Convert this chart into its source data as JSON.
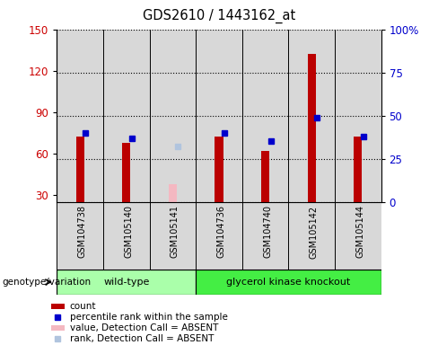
{
  "title": "GDS2610 / 1443162_at",
  "samples": [
    "GSM104738",
    "GSM105140",
    "GSM105141",
    "GSM104736",
    "GSM104740",
    "GSM105142",
    "GSM105144"
  ],
  "count_values": [
    72,
    68,
    null,
    72,
    62,
    132,
    72
  ],
  "count_absent_values": [
    null,
    null,
    38,
    null,
    null,
    null,
    null
  ],
  "percentile_values": [
    40,
    37,
    null,
    40,
    35,
    49,
    38
  ],
  "percentile_absent_values": [
    null,
    null,
    32,
    null,
    null,
    null,
    null
  ],
  "ylim_left": [
    25,
    150
  ],
  "ylim_right": [
    0,
    100
  ],
  "yticks_left": [
    30,
    60,
    90,
    120,
    150
  ],
  "yticks_right": [
    0,
    25,
    50,
    75,
    100
  ],
  "ylabel_left_color": "#cc0000",
  "ylabel_right_color": "#0000cc",
  "bar_color": "#bb0000",
  "bar_absent_color": "#f4b8c1",
  "dot_color": "#0000cc",
  "dot_absent_color": "#b0c4de",
  "background_plot": "#d8d8d8",
  "background_fig": "#ffffff",
  "legend_items": [
    {
      "label": "count",
      "color": "#bb0000",
      "type": "bar"
    },
    {
      "label": "percentile rank within the sample",
      "color": "#0000cc",
      "type": "dot"
    },
    {
      "label": "value, Detection Call = ABSENT",
      "color": "#f4b8c1",
      "type": "bar"
    },
    {
      "label": "rank, Detection Call = ABSENT",
      "color": "#b0c4de",
      "type": "dot"
    }
  ],
  "groups_info": [
    {
      "name": "wild-type",
      "start": 0,
      "end": 2,
      "color": "#aaffaa"
    },
    {
      "name": "glycerol kinase knockout",
      "start": 3,
      "end": 6,
      "color": "#44ee44"
    }
  ],
  "genotype_label": "genotype/variation",
  "bar_width": 0.18
}
